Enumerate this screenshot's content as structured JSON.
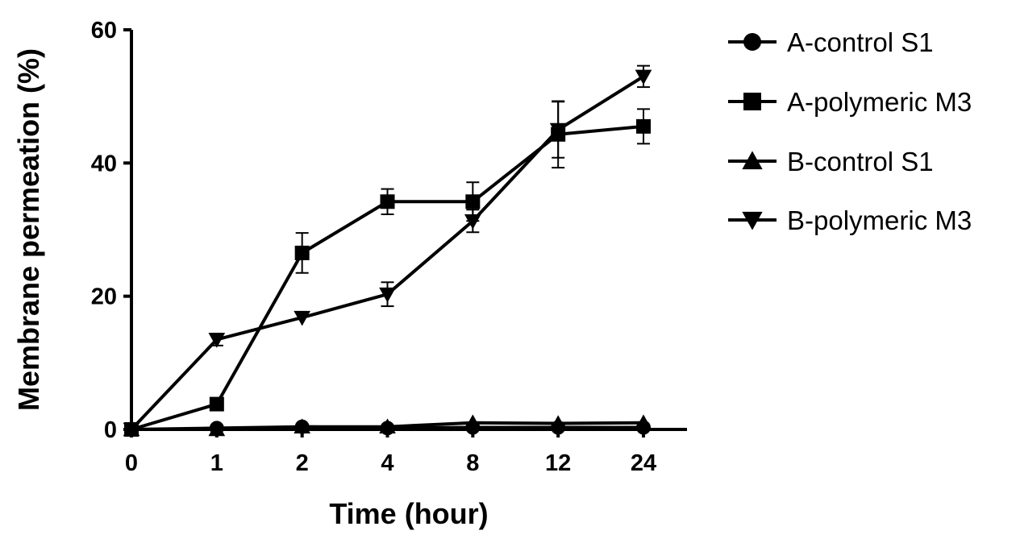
{
  "chart_data": {
    "type": "line",
    "title": "",
    "xlabel": "Time (hour)",
    "ylabel": "Membrane permeation (%)",
    "x": [
      "0",
      "1",
      "2",
      "4",
      "8",
      "12",
      "24"
    ],
    "ylim": [
      0,
      60
    ],
    "yticks": [
      0,
      20,
      40,
      60
    ],
    "grid": false,
    "legend_position": "right",
    "series": [
      {
        "name": "A-control S1",
        "marker": "circle",
        "values": [
          0,
          0.2,
          0.4,
          0.2,
          0.3,
          0.3,
          0.3
        ],
        "errors": [
          0,
          0,
          0,
          0,
          0,
          0,
          0
        ]
      },
      {
        "name": "A-polymeric M3",
        "marker": "square",
        "values": [
          0,
          3.8,
          26.5,
          34.2,
          34.2,
          44.3,
          45.5
        ],
        "errors": [
          0,
          0,
          3.0,
          1.9,
          2.9,
          5.0,
          2.6
        ]
      },
      {
        "name": "B-control S1",
        "marker": "triangle-up",
        "values": [
          0,
          0,
          0.4,
          0.4,
          1.0,
          0.9,
          1.0
        ],
        "errors": [
          0,
          0,
          0,
          0,
          0,
          0,
          0
        ]
      },
      {
        "name": "B-polymeric M3",
        "marker": "triangle-down",
        "values": [
          0,
          13.5,
          16.8,
          20.3,
          31.3,
          45.0,
          53.0
        ],
        "errors": [
          0,
          0.9,
          0,
          1.8,
          1.7,
          4.2,
          1.6
        ]
      }
    ],
    "colors": {
      "line": "#000000",
      "marker": "#000000"
    }
  }
}
